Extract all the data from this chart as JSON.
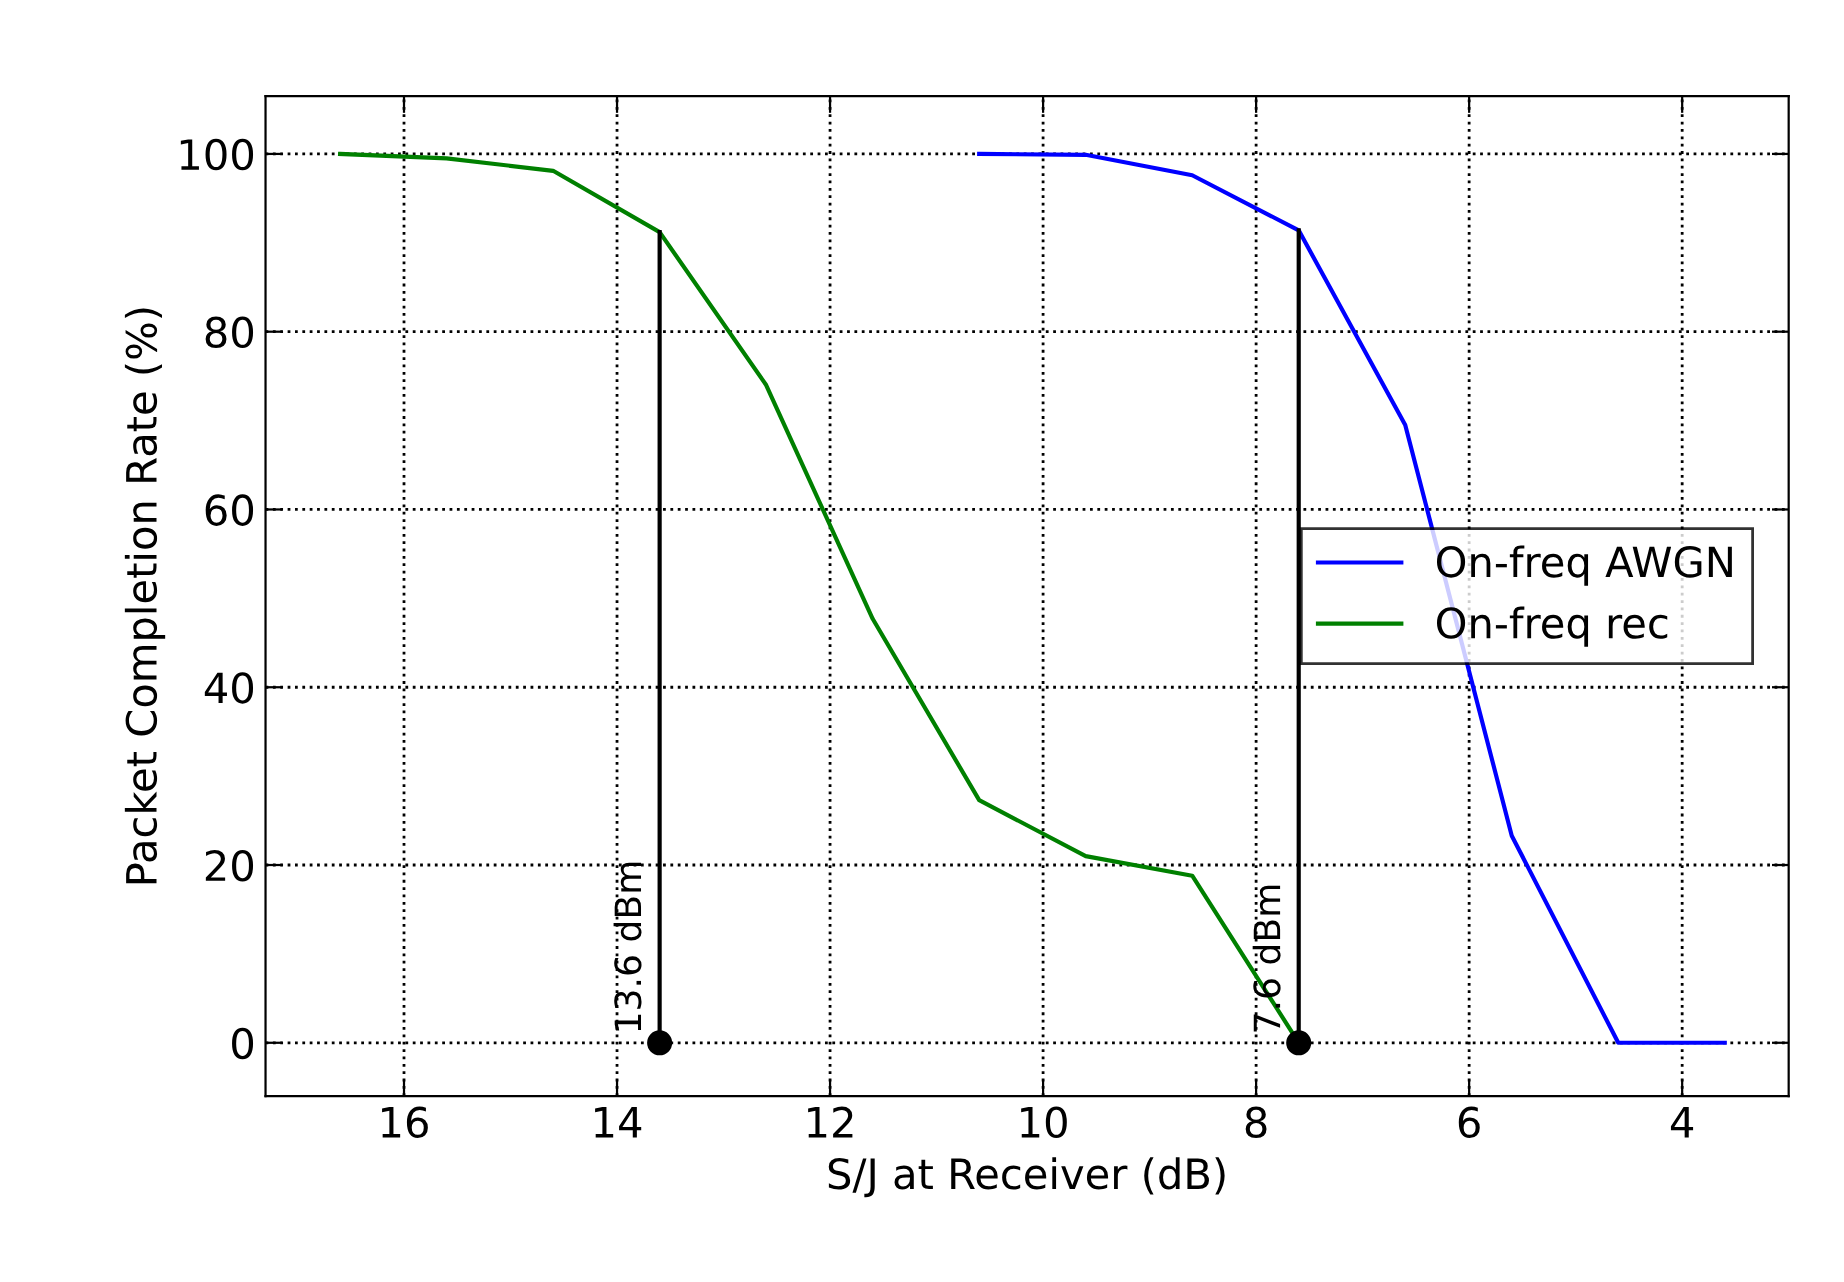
{
  "chart_data": {
    "type": "line",
    "xlabel": "S/J at Receiver (dB)",
    "ylabel": "Packet Completion Rate (%)",
    "xlim": [
      17.3,
      3.0
    ],
    "ylim": [
      -6,
      106.5
    ],
    "xticks": [
      16,
      14,
      12,
      10,
      8,
      6,
      4
    ],
    "yticks": [
      0,
      20,
      40,
      60,
      80,
      100
    ],
    "grid": true,
    "legend": "right",
    "line_style": "solid",
    "series": [
      {
        "name": "On-freq AWGN",
        "color": "#0000ff",
        "x": [
          10.6,
          9.6,
          8.6,
          7.6,
          6.6,
          5.6,
          4.6,
          3.6
        ],
        "values": [
          100,
          99.9,
          97.6,
          91.4,
          69.5,
          23.3,
          0,
          0
        ]
      },
      {
        "name": "On-freq rec",
        "color": "#008000",
        "x": [
          16.6,
          15.6,
          14.6,
          13.6,
          12.6,
          11.6,
          10.6,
          9.6,
          8.6,
          7.6
        ],
        "values": [
          100,
          99.5,
          98.1,
          91.2,
          74,
          47.7,
          27.3,
          21,
          18.8,
          0
        ]
      },
      {
        "color": "#000000",
        "x": [
          13.6,
          13.6
        ],
        "values": [
          0,
          91.2
        ]
      },
      {
        "color": "#000000",
        "x": [
          7.6,
          7.6
        ],
        "values": [
          0,
          91.4
        ]
      },
      {
        "type": "scatter",
        "color": "#000000",
        "marker": "circle",
        "x": [
          13.6,
          7.6
        ],
        "values": [
          0,
          0
        ]
      }
    ],
    "annotations": [
      {
        "text": "13.6 dBm",
        "x": 13.6,
        "y": 0
      },
      {
        "text": "7.6 dBm",
        "x": 7.6,
        "y": 0
      }
    ]
  }
}
